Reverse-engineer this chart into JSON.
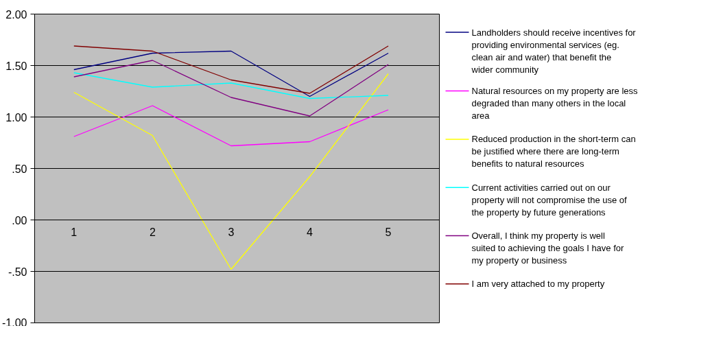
{
  "chart_data": {
    "type": "line",
    "categories": [
      "1",
      "2",
      "3",
      "4",
      "5"
    ],
    "series": [
      {
        "name": "Landholders should receive incentives for providing environmental services (eg. clean air and water) that benefit the wider community",
        "color": "#000080",
        "values": [
          1.46,
          1.62,
          1.64,
          1.2,
          1.62
        ]
      },
      {
        "name": "Natural resources on my property are less degraded than many others in the local area",
        "color": "#ff00ff",
        "values": [
          0.81,
          1.11,
          0.72,
          0.76,
          1.07
        ]
      },
      {
        "name": "Reduced production in the short-term can be justified where there are long-term benefits to natural resources",
        "color": "#ffff00",
        "values": [
          1.24,
          0.82,
          -0.48,
          0.42,
          1.42
        ]
      },
      {
        "name": "Current activities carried out on our property will not compromise the use of the property by future generations",
        "color": "#00ffff",
        "values": [
          1.43,
          1.29,
          1.33,
          1.18,
          1.21
        ]
      },
      {
        "name": "Overall, I think my property is well suited to achieving the goals I have for my property or business",
        "color": "#800080",
        "values": [
          1.39,
          1.55,
          1.19,
          1.01,
          1.51
        ]
      },
      {
        "name": "I am very attached to my property",
        "color": "#800000",
        "values": [
          1.69,
          1.64,
          1.36,
          1.23,
          1.69
        ]
      }
    ],
    "ylim": [
      -1.0,
      2.0
    ],
    "yticks": [
      {
        "value": -1.0,
        "label": "-1.00"
      },
      {
        "value": -0.5,
        "label": "-.50"
      },
      {
        "value": 0,
        "label": ".00"
      },
      {
        "value": 0.5,
        "label": ".50"
      },
      {
        "value": 1.0,
        "label": "1.00"
      },
      {
        "value": 1.5,
        "label": "1.50"
      },
      {
        "value": 2.0,
        "label": "2.00"
      }
    ],
    "grid": "y",
    "legend": "right",
    "marker": "none",
    "line_style": "solid"
  }
}
